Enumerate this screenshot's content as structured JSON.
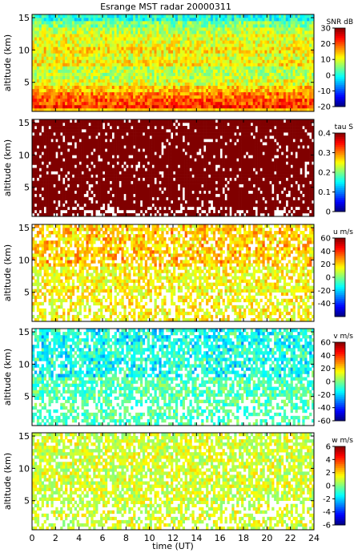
{
  "title": "Esrange MST radar 20000311",
  "xlabel": "time (UT)",
  "x_ticks": [
    "0",
    "2",
    "4",
    "6",
    "8",
    "10",
    "12",
    "14",
    "16",
    "18",
    "20",
    "22",
    "24"
  ],
  "chart_data": [
    {
      "type": "heatmap",
      "quantity": "SNR",
      "ylabel": "altitude (km)",
      "yticks": [
        5,
        10,
        15
      ],
      "ylim": [
        0.5,
        15.5
      ],
      "xlim": [
        0,
        24
      ],
      "colorbar_label": "SNR dB",
      "colorbar_ticks": [
        30,
        20,
        10,
        0,
        -10,
        -20
      ],
      "clim": [
        -20,
        30
      ],
      "altitude_profile_km": [
        1,
        2,
        3,
        4,
        5,
        6,
        7,
        8,
        9,
        10,
        11,
        12,
        13,
        14,
        15
      ],
      "typical_values": [
        22,
        20,
        18,
        14,
        10,
        8,
        8,
        12,
        10,
        12,
        10,
        10,
        8,
        5,
        0
      ]
    },
    {
      "type": "heatmap",
      "quantity": "tau",
      "ylabel": "altitude (km)",
      "yticks": [
        5,
        10,
        15
      ],
      "ylim": [
        0.5,
        15.5
      ],
      "xlim": [
        0,
        24
      ],
      "colorbar_label": "tau S",
      "colorbar_ticks": [
        0.4,
        0.3,
        0.2,
        0.1,
        0
      ],
      "clim": [
        0,
        0.4
      ],
      "typical_value": 0.4
    },
    {
      "type": "heatmap",
      "quantity": "u",
      "ylabel": "altitude (km)",
      "yticks": [
        5,
        10,
        15
      ],
      "ylim": [
        0.5,
        15.5
      ],
      "xlim": [
        0,
        24
      ],
      "colorbar_label": "u m/s",
      "colorbar_ticks": [
        60,
        40,
        20,
        0,
        -20,
        -40
      ],
      "clim": [
        -60,
        60
      ],
      "typical_value": 15
    },
    {
      "type": "heatmap",
      "quantity": "v",
      "ylabel": "altitude (km)",
      "yticks": [
        5,
        10,
        15
      ],
      "ylim": [
        0.5,
        15.5
      ],
      "xlim": [
        0,
        24
      ],
      "colorbar_label": "v m/s",
      "colorbar_ticks": [
        60,
        40,
        20,
        0,
        -20,
        -40,
        -60
      ],
      "clim": [
        -60,
        60
      ],
      "typical_value": -5
    },
    {
      "type": "heatmap",
      "quantity": "w",
      "ylabel": "altitude (km)",
      "yticks": [
        5,
        10,
        15
      ],
      "ylim": [
        0.5,
        15.5
      ],
      "xlim": [
        0,
        24
      ],
      "colorbar_label": "w m/s",
      "colorbar_ticks": [
        6,
        4,
        2,
        0,
        -2,
        -4,
        -6
      ],
      "clim": [
        -6,
        6
      ],
      "typical_value": 1
    }
  ]
}
